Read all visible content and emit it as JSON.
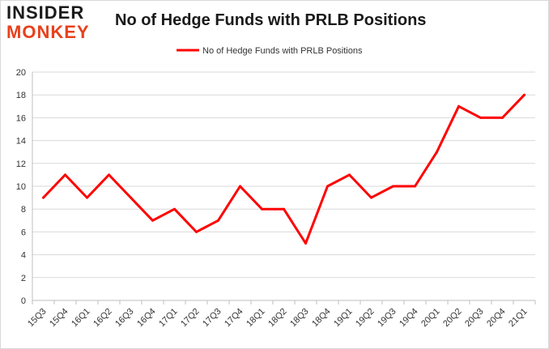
{
  "logo": {
    "line1": "INSIDER",
    "line2": "MONKEY"
  },
  "chart_data": {
    "type": "line",
    "title": "No of Hedge Funds with PRLB Positions",
    "xlabel": "",
    "ylabel": "",
    "categories": [
      "15Q3",
      "15Q4",
      "16Q1",
      "16Q2",
      "16Q3",
      "16Q4",
      "17Q1",
      "17Q2",
      "17Q3",
      "17Q4",
      "18Q1",
      "18Q2",
      "18Q3",
      "18Q4",
      "19Q1",
      "19Q2",
      "19Q3",
      "19Q4",
      "20Q1",
      "20Q2",
      "20Q3",
      "20Q4",
      "21Q1"
    ],
    "series": [
      {
        "name": "No of Hedge Funds with PRLB Positions",
        "values": [
          9,
          11,
          9,
          11,
          9,
          7,
          8,
          6,
          7,
          10,
          8,
          8,
          5,
          10,
          11,
          9,
          10,
          10,
          13,
          17,
          16,
          16,
          18
        ],
        "color": "#ff0000"
      }
    ],
    "ylim": [
      0,
      20
    ],
    "yticks": [
      0,
      2,
      4,
      6,
      8,
      10,
      12,
      14,
      16,
      18,
      20
    ],
    "grid": true,
    "legend_position": "top-center"
  }
}
